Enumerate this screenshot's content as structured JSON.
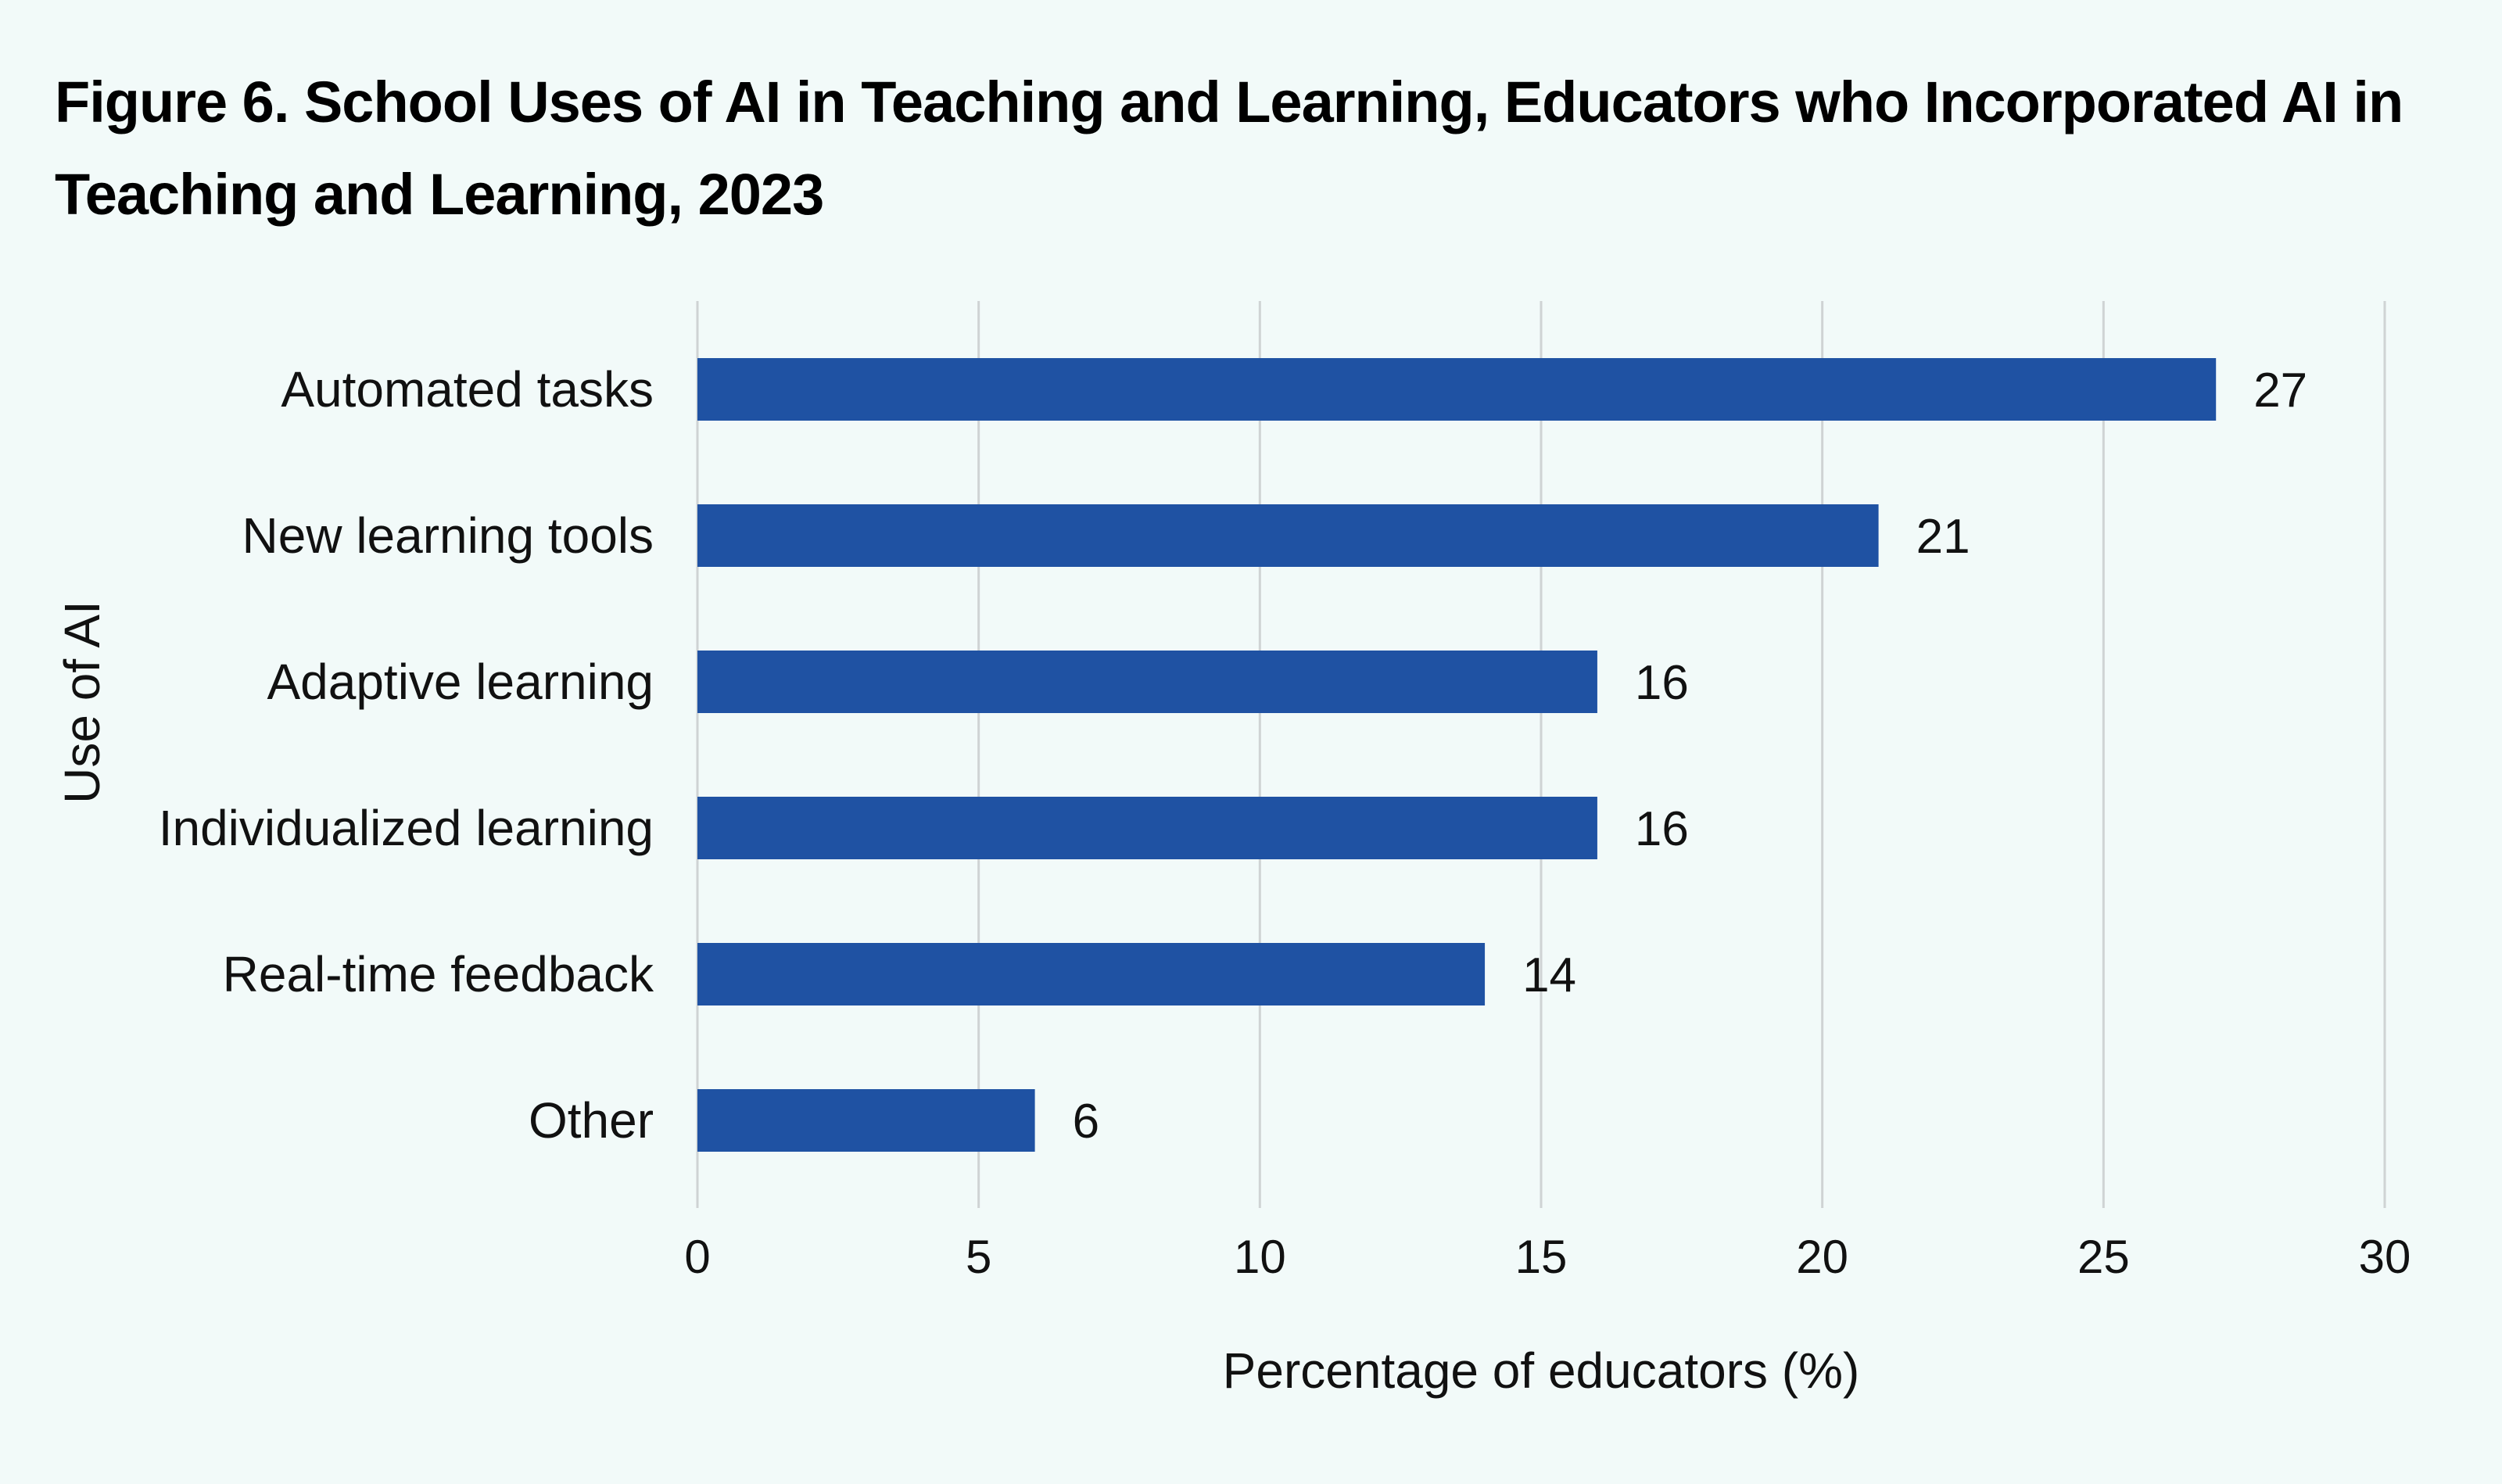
{
  "colors": {
    "background": "#f2faf9",
    "bar": "#1f52a3",
    "grid": "#cfd3d4",
    "text": "#111111"
  },
  "chart_data": {
    "type": "bar",
    "orientation": "horizontal",
    "title": "Figure 6. School Uses of AI in Teaching and Learning, Educators who Incorporated AI in Teaching and Learning, 2023",
    "categories": [
      "Automated tasks",
      "New learning tools",
      "Adaptive learning",
      "Individualized learning",
      "Real-time feedback",
      "Other"
    ],
    "values": [
      27,
      21,
      16,
      16,
      14,
      6
    ],
    "xlabel": "Percentage of educators (%)",
    "ylabel": "Use of AI",
    "xlim": [
      0,
      30
    ],
    "xticks": [
      0,
      5,
      10,
      15,
      20,
      25,
      30
    ],
    "grid": "vertical",
    "legend": "none",
    "data_labels": true
  }
}
